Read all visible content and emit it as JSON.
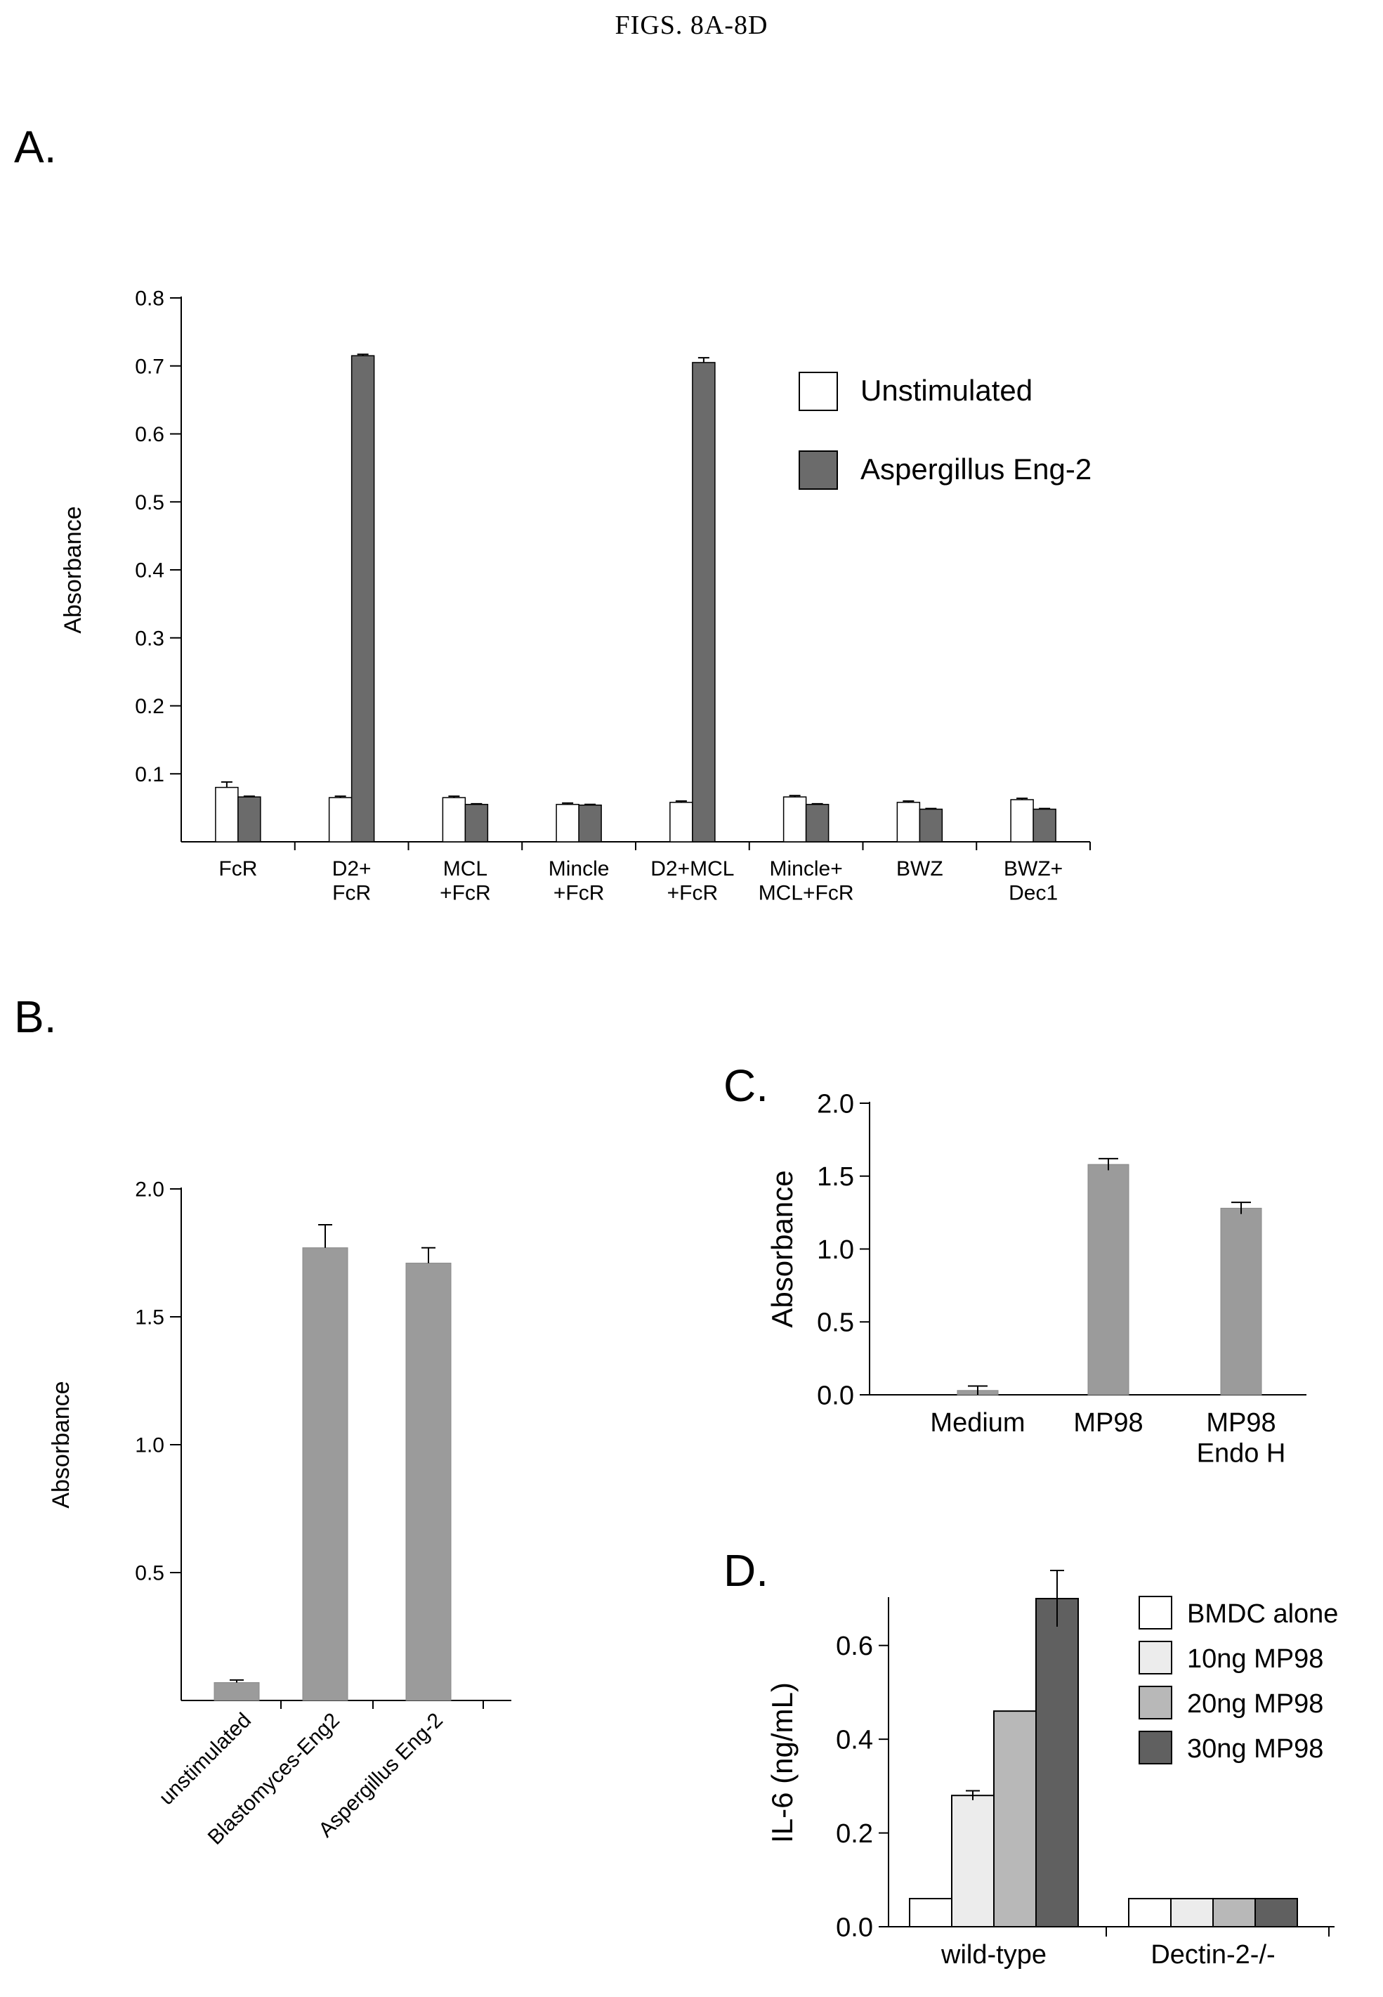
{
  "page_title": "FIGS. 8A-8D",
  "panels": {
    "a": "A.",
    "b": "B.",
    "c": "C.",
    "d": "D."
  },
  "colors": {
    "unstimulated": "#ffffff",
    "eng2": "#6b6b6b",
    "gray_bar": "#9b9b9b",
    "bmdc": "#ffffff",
    "ng10": "#ececec",
    "ng20": "#b8b8b8",
    "ng30": "#606060"
  },
  "chart_data": [
    {
      "id": "A",
      "type": "bar",
      "title": "",
      "ylabel": "Absorbance",
      "xlabel": "",
      "ylim": [
        0,
        0.8
      ],
      "yticks": [
        0.1,
        0.2,
        0.3,
        0.4,
        0.5,
        0.6,
        0.7,
        0.8
      ],
      "categories": [
        "FcR",
        "D2+\nFcR",
        "MCL\n+FcR",
        "Mincle\n+FcR",
        "D2+MCL\n+FcR",
        "Mincle+\nMCL+FcR",
        "BWZ",
        "BWZ+\nDec1"
      ],
      "series": [
        {
          "name": "Unstimulated",
          "values": [
            0.08,
            0.065,
            0.065,
            0.055,
            0.058,
            0.066,
            0.058,
            0.062
          ],
          "errors": [
            0.008,
            0.002,
            0.002,
            0.002,
            0.002,
            0.002,
            0.002,
            0.002
          ]
        },
        {
          "name": "Aspergillus Eng-2",
          "values": [
            0.066,
            0.715,
            0.055,
            0.054,
            0.705,
            0.055,
            0.048,
            0.048
          ],
          "errors": [
            0.001,
            0.002,
            0.001,
            0.001,
            0.007,
            0.001,
            0.001,
            0.001
          ]
        }
      ],
      "legend_position": "top-right"
    },
    {
      "id": "B",
      "type": "bar",
      "title": "",
      "ylabel": "Absorbance",
      "ylim": [
        0,
        2.0
      ],
      "yticks": [
        0.5,
        1.0,
        1.5,
        2.0
      ],
      "categories": [
        "unstimulated",
        "Blastomyces-Eng2",
        "Aspergillus Eng-2"
      ],
      "values": [
        0.07,
        1.77,
        1.71
      ],
      "errors": [
        0.01,
        0.09,
        0.06
      ]
    },
    {
      "id": "C",
      "type": "bar",
      "title": "",
      "ylabel": "Absorbance",
      "ylim": [
        0,
        2.0
      ],
      "yticks": [
        0.0,
        0.5,
        1.0,
        1.5,
        2.0
      ],
      "categories": [
        "Medium",
        "MP98",
        "MP98\nEndo H"
      ],
      "values": [
        0.03,
        1.58,
        1.28
      ],
      "errors": [
        0.03,
        0.04,
        0.04
      ]
    },
    {
      "id": "D",
      "type": "bar",
      "title": "",
      "ylabel": "IL-6 (ng/mL)",
      "ylim": [
        0,
        0.7
      ],
      "yticks": [
        0,
        0.2,
        0.4,
        0.6
      ],
      "categories": [
        "wild-type",
        "Dectin-2-/-"
      ],
      "series": [
        {
          "name": "BMDC alone",
          "values": [
            0.06,
            0.06
          ],
          "errors": [
            0,
            0
          ]
        },
        {
          "name": "10ng MP98",
          "values": [
            0.28,
            0.06
          ],
          "errors": [
            0.01,
            0
          ]
        },
        {
          "name": "20ng MP98",
          "values": [
            0.46,
            0.06
          ],
          "errors": [
            0,
            0
          ]
        },
        {
          "name": "30ng MP98",
          "values": [
            0.7,
            0.06
          ],
          "errors": [
            0.06,
            0
          ]
        }
      ],
      "legend_position": "top-right"
    }
  ]
}
